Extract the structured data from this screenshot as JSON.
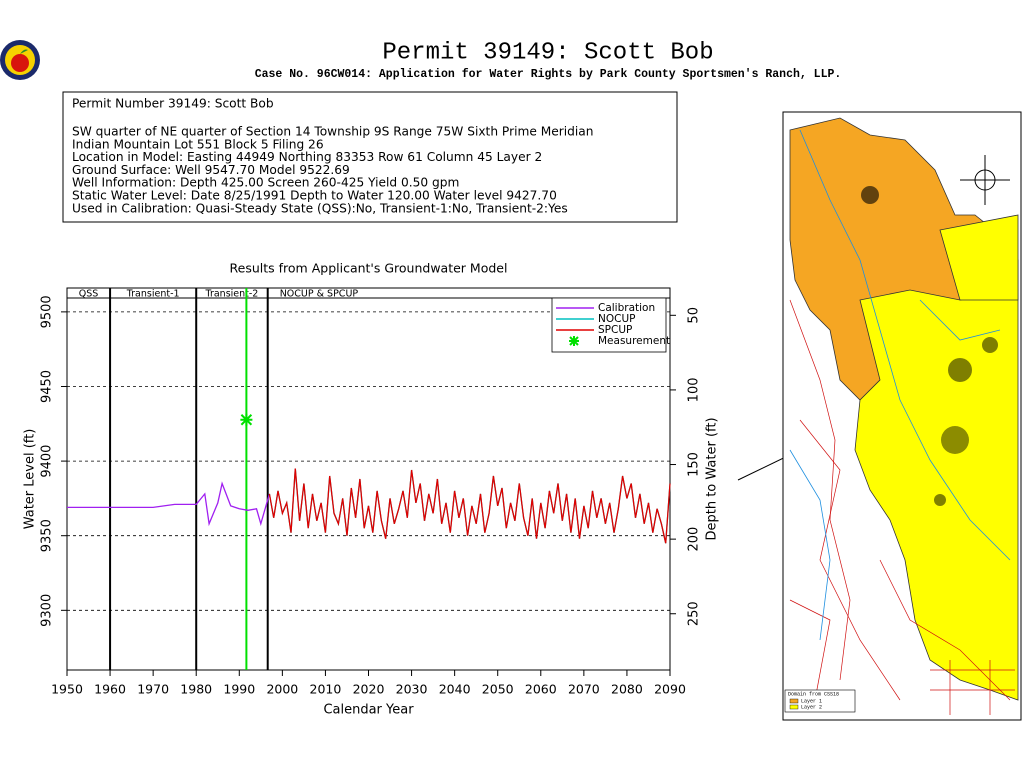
{
  "header": {
    "title": "Permit 39149:  Scott Bob",
    "subtitle": "Case No. 96CW014: Application for Water Rights by Park County Sportsmen's Ranch, LLP."
  },
  "info": {
    "lines": [
      "Permit Number 39149: Scott Bob",
      "SW quarter of NE quarter of Section 14 Township 9S Range 75W Sixth Prime Meridian",
      "Indian Mountain Lot 551 Block 5 Filing 26",
      "Location in Model: Easting 44949 Northing   83353 Row   61 Column 45 Layer 2",
      "Ground Surface: Well   9547.70 Model   9522.69",
      "Well Information: Depth    425.00 Screen 260-425 Yield      0.50 gpm",
      "Static Water Level: Date   8/25/1991 Depth to Water    120.00 Water level  9427.70",
      "Used in Calibration: Quasi-Steady State (QSS):No, Transient-1:No, Transient-2:Yes"
    ]
  },
  "map": {
    "legend_title": "Domain from CSS18",
    "legend": [
      "Layer 1",
      "Layer 2"
    ]
  },
  "chart_data": {
    "type": "line",
    "title": "Results from Applicant's Groundwater Model",
    "x_label": "Calendar Year",
    "y_label": "Water Level (ft)",
    "y2_label": "Depth to Water (ft)",
    "xlim": [
      1950,
      2090
    ],
    "xticks": [
      1950,
      1960,
      1970,
      1980,
      1990,
      2000,
      2010,
      2020,
      2030,
      2040,
      2050,
      2060,
      2070,
      2080,
      2090
    ],
    "ylim": [
      9260,
      9516
    ],
    "yticks": [
      9300,
      9350,
      9400,
      9450,
      9500
    ],
    "y2lim": [
      287.7,
      31.7
    ],
    "y2ticks": [
      50,
      100,
      150,
      200,
      250
    ],
    "grid": true,
    "legend_position": "upper right",
    "periods": [
      {
        "label": "QSS",
        "start": 1950,
        "end": 1960
      },
      {
        "label": "Transient-1",
        "start": 1960,
        "end": 1980
      },
      {
        "label": "Transient-2",
        "start": 1980,
        "end": 1996.6
      },
      {
        "label": "NOCUP  &  SPCUP",
        "start": 1996.6,
        "end": 2090
      }
    ],
    "series": [
      {
        "name": "Calibration",
        "color": "#a020f0",
        "style": "line",
        "x": [
          1950,
          1960,
          1970,
          1975,
          1980,
          1982,
          1983,
          1985,
          1986,
          1988,
          1990,
          1992,
          1994,
          1995,
          1997
        ],
        "values": [
          9369,
          9369,
          9369,
          9371,
          9371,
          9378,
          9358,
          9372,
          9385,
          9370,
          9368,
          9367,
          9368,
          9358,
          9378
        ]
      },
      {
        "name": "NOCUP",
        "color": "#00c0c0",
        "style": "line",
        "x": [
          1997,
          1998,
          1999,
          2000,
          2001,
          2002,
          2003,
          2004,
          2005,
          2006,
          2007,
          2008,
          2009,
          2010,
          2011,
          2012,
          2013,
          2014,
          2015,
          2016,
          2017,
          2018,
          2019,
          2020,
          2021,
          2022,
          2023,
          2024,
          2025,
          2026,
          2027,
          2028,
          2029,
          2030,
          2031,
          2032,
          2033,
          2034,
          2035,
          2036,
          2037,
          2038,
          2039,
          2040,
          2041,
          2042,
          2043,
          2044,
          2045,
          2046,
          2047,
          2048,
          2049,
          2050,
          2051,
          2052,
          2053,
          2054,
          2055,
          2056,
          2057,
          2058,
          2059,
          2060,
          2061,
          2062,
          2063,
          2064,
          2065,
          2066,
          2067,
          2068,
          2069,
          2070,
          2071,
          2072,
          2073,
          2074,
          2075,
          2076,
          2077,
          2078,
          2079,
          2080,
          2081,
          2082,
          2083,
          2084,
          2085,
          2086,
          2087,
          2088,
          2089,
          2090
        ],
        "values": [
          9378,
          9362,
          9380,
          9365,
          9372,
          9352,
          9395,
          9360,
          9385,
          9355,
          9378,
          9360,
          9372,
          9352,
          9390,
          9365,
          9358,
          9375,
          9350,
          9382,
          9362,
          9388,
          9355,
          9370,
          9352,
          9380,
          9360,
          9348,
          9375,
          9358,
          9368,
          9380,
          9362,
          9394,
          9372,
          9385,
          9360,
          9378,
          9365,
          9388,
          9358,
          9372,
          9352,
          9380,
          9362,
          9375,
          9350,
          9370,
          9358,
          9378,
          9352,
          9365,
          9390,
          9370,
          9382,
          9355,
          9372,
          9360,
          9385,
          9362,
          9350,
          9375,
          9348,
          9372,
          9355,
          9380,
          9365,
          9385,
          9360,
          9378,
          9352,
          9375,
          9348,
          9370,
          9355,
          9380,
          9362,
          9375,
          9358,
          9372,
          9352,
          9368,
          9390,
          9375,
          9385,
          9362,
          9378,
          9358,
          9372,
          9352,
          9368,
          9358,
          9345,
          9385
        ]
      },
      {
        "name": "SPCUP",
        "color": "#e00000",
        "style": "line",
        "x": [
          1997,
          1998,
          1999,
          2000,
          2001,
          2002,
          2003,
          2004,
          2005,
          2006,
          2007,
          2008,
          2009,
          2010,
          2011,
          2012,
          2013,
          2014,
          2015,
          2016,
          2017,
          2018,
          2019,
          2020,
          2021,
          2022,
          2023,
          2024,
          2025,
          2026,
          2027,
          2028,
          2029,
          2030,
          2031,
          2032,
          2033,
          2034,
          2035,
          2036,
          2037,
          2038,
          2039,
          2040,
          2041,
          2042,
          2043,
          2044,
          2045,
          2046,
          2047,
          2048,
          2049,
          2050,
          2051,
          2052,
          2053,
          2054,
          2055,
          2056,
          2057,
          2058,
          2059,
          2060,
          2061,
          2062,
          2063,
          2064,
          2065,
          2066,
          2067,
          2068,
          2069,
          2070,
          2071,
          2072,
          2073,
          2074,
          2075,
          2076,
          2077,
          2078,
          2079,
          2080,
          2081,
          2082,
          2083,
          2084,
          2085,
          2086,
          2087,
          2088,
          2089,
          2090
        ],
        "values": [
          9378,
          9362,
          9380,
          9365,
          9372,
          9352,
          9395,
          9360,
          9385,
          9355,
          9378,
          9360,
          9372,
          9352,
          9390,
          9365,
          9358,
          9375,
          9350,
          9382,
          9362,
          9388,
          9355,
          9370,
          9352,
          9380,
          9360,
          9348,
          9375,
          9358,
          9368,
          9380,
          9362,
          9394,
          9372,
          9385,
          9360,
          9378,
          9365,
          9388,
          9358,
          9372,
          9352,
          9380,
          9362,
          9375,
          9350,
          9370,
          9358,
          9378,
          9352,
          9365,
          9390,
          9370,
          9382,
          9355,
          9372,
          9360,
          9385,
          9362,
          9350,
          9375,
          9348,
          9372,
          9355,
          9380,
          9365,
          9385,
          9360,
          9378,
          9352,
          9375,
          9348,
          9370,
          9355,
          9380,
          9362,
          9375,
          9358,
          9372,
          9352,
          9368,
          9390,
          9375,
          9385,
          9362,
          9378,
          9358,
          9372,
          9352,
          9368,
          9358,
          9345,
          9385
        ]
      },
      {
        "name": "Measurement",
        "color": "#00e000",
        "style": "points",
        "x": [
          1991.65
        ],
        "values": [
          9427.7
        ]
      }
    ]
  }
}
